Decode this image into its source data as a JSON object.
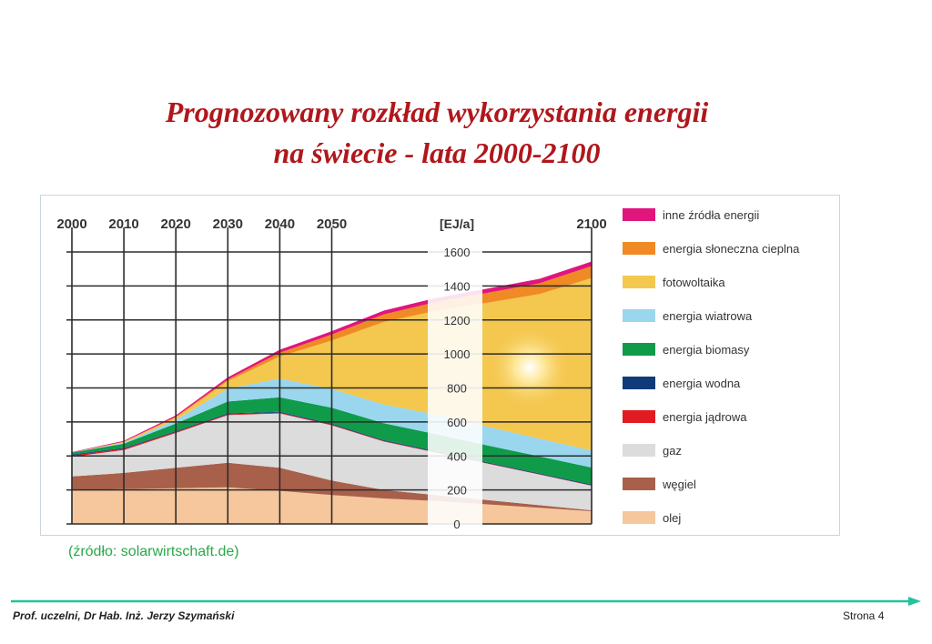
{
  "title_line1": "Prognozowany rozkład wykorzystania energii",
  "title_line2": "na świecie - lata 2000-2100",
  "source": "(źródło: solarwirtschaft.de)",
  "footer": {
    "author": "Prof. uczelni, Dr Hab. Inż.  Jerzy Szymański",
    "page": "Strona 4"
  },
  "colors": {
    "title": "#b0161b",
    "source": "#2aa84a",
    "footer_line": "#1fc49a"
  },
  "chart_data": {
    "type": "area",
    "stacked": true,
    "ylabel": "[EJ/a]",
    "x": [
      2000,
      2010,
      2020,
      2030,
      2040,
      2050,
      2060,
      2070,
      2080,
      2090,
      2100
    ],
    "xtick_labels": [
      "2000",
      "2010",
      "2020",
      "2030",
      "2040",
      "2050",
      "2100"
    ],
    "ylim": [
      0,
      1600
    ],
    "yticks": [
      0,
      200,
      400,
      600,
      800,
      1000,
      1200,
      1400,
      1600
    ],
    "grid": true,
    "legend_position": "right",
    "series": [
      {
        "name": "olej",
        "color": "#f6c79c",
        "values": [
          200,
          205,
          210,
          215,
          195,
          170,
          150,
          135,
          115,
          95,
          75
        ]
      },
      {
        "name": "węgiel",
        "color": "#a8604a",
        "values": [
          80,
          95,
          120,
          145,
          135,
          85,
          50,
          35,
          25,
          15,
          5
        ]
      },
      {
        "name": "gaz",
        "color": "#dcdcdc",
        "values": [
          115,
          135,
          205,
          280,
          320,
          325,
          285,
          250,
          215,
          180,
          145
        ]
      },
      {
        "name": "energia jądrowa",
        "color": "#e11b22",
        "values": [
          8,
          7,
          6,
          5,
          5,
          4,
          3,
          3,
          2,
          2,
          2
        ]
      },
      {
        "name": "energia wodna",
        "color": "#0f3b78",
        "values": [
          5,
          5,
          5,
          5,
          5,
          5,
          5,
          5,
          5,
          5,
          5
        ]
      },
      {
        "name": "energia biomasy",
        "color": "#0f9b4a",
        "values": [
          12,
          25,
          45,
          70,
          85,
          95,
          100,
          100,
          100,
          100,
          100
        ]
      },
      {
        "name": "energia wiatrowa",
        "color": "#9ad6ee",
        "values": [
          0,
          5,
          20,
          75,
          110,
          110,
          110,
          115,
          110,
          105,
          100
        ]
      },
      {
        "name": "fotowoltaika",
        "color": "#f4c74f",
        "values": [
          0,
          5,
          15,
          45,
          130,
          285,
          485,
          610,
          730,
          850,
          1015
        ]
      },
      {
        "name": "energia słoneczna cieplna",
        "color": "#f08a24",
        "values": [
          0,
          2,
          5,
          10,
          22,
          35,
          45,
          52,
          58,
          64,
          70
        ]
      },
      {
        "name": "inne źródła energii",
        "color": "#e0157d",
        "values": [
          3,
          5,
          8,
          12,
          18,
          20,
          22,
          24,
          25,
          26,
          27
        ]
      }
    ]
  }
}
